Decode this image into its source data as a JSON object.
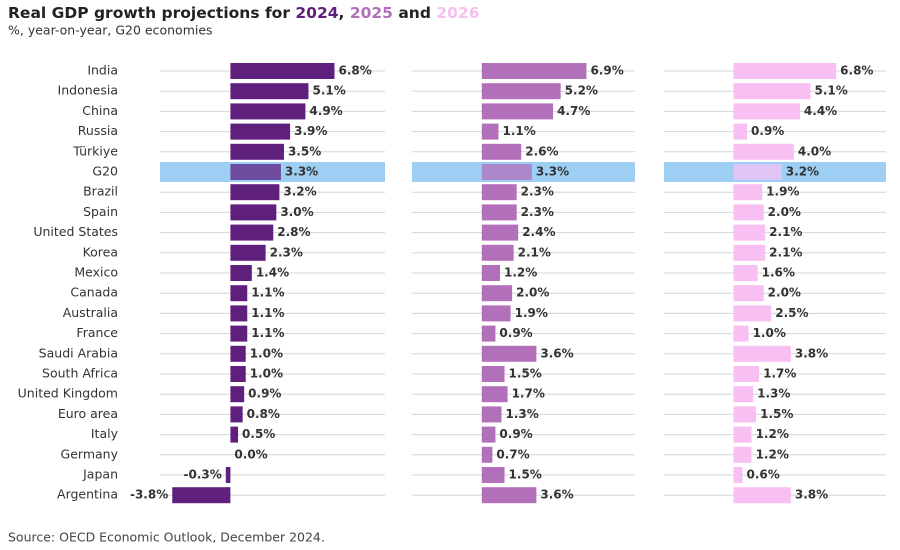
{
  "chart_data": {
    "type": "bar",
    "orientation": "horizontal",
    "title_parts": [
      "Real GDP growth projections for ",
      "2024",
      ", ",
      "2025",
      " and ",
      "2026"
    ],
    "subtitle": "%, year-on-year, G20 economies",
    "source": "Source: OECD Economic Outlook, December 2024.",
    "highlight": "G20",
    "highlight_color": "#9dcff5",
    "categories": [
      "India",
      "Indonesia",
      "China",
      "Russia",
      "Türkiye",
      "G20",
      "Brazil",
      "Spain",
      "United States",
      "Korea",
      "Mexico",
      "Canada",
      "Australia",
      "France",
      "Saudi Arabia",
      "South Africa",
      "United Kingdom",
      "Euro area",
      "Italy",
      "Germany",
      "Japan",
      "Argentina"
    ],
    "series": [
      {
        "name": "2024",
        "color": "#5f1f7d",
        "xlim": [
          -4.6,
          10.1
        ],
        "values": [
          6.8,
          5.1,
          4.9,
          3.9,
          3.5,
          3.3,
          3.2,
          3.0,
          2.8,
          2.3,
          1.4,
          1.1,
          1.1,
          1.1,
          1.0,
          1.0,
          0.9,
          0.8,
          0.5,
          0.0,
          -0.3,
          -3.8
        ],
        "value_labels": [
          "6.8%",
          "5.1%",
          "4.9%",
          "3.9%",
          "3.5%",
          "3.3%",
          "3.2%",
          "3.0%",
          "2.8%",
          "2.3%",
          "1.4%",
          "1.1%",
          "1.1%",
          "1.1%",
          "1.0%",
          "1.0%",
          "0.9%",
          "0.8%",
          "0.5%",
          "0.0%",
          "-0.3%",
          "-3.8%"
        ]
      },
      {
        "name": "2025",
        "color": "#b26fba",
        "xlim": [
          -4.6,
          10.1
        ],
        "values": [
          6.9,
          5.2,
          4.7,
          1.1,
          2.6,
          3.3,
          2.3,
          2.3,
          2.4,
          2.1,
          1.2,
          2.0,
          1.9,
          0.9,
          3.6,
          1.5,
          1.7,
          1.3,
          0.9,
          0.7,
          1.5,
          3.6
        ],
        "value_labels": [
          "6.9%",
          "5.2%",
          "4.7%",
          "1.1%",
          "2.6%",
          "3.3%",
          "2.3%",
          "2.3%",
          "2.4%",
          "2.1%",
          "1.2%",
          "2.0%",
          "1.9%",
          "0.9%",
          "3.6%",
          "1.5%",
          "1.7%",
          "1.3%",
          "0.9%",
          "0.7%",
          "1.5%",
          "3.6%"
        ]
      },
      {
        "name": "2026",
        "color": "#f8c0f2",
        "xlim": [
          -4.6,
          10.1
        ],
        "values": [
          6.8,
          5.1,
          4.4,
          0.9,
          4.0,
          3.2,
          1.9,
          2.0,
          2.1,
          2.1,
          1.6,
          2.0,
          2.5,
          1.0,
          3.8,
          1.7,
          1.3,
          1.5,
          1.2,
          1.2,
          0.6,
          3.8
        ],
        "value_labels": [
          "6.8%",
          "5.1%",
          "4.4%",
          "0.9%",
          "4.0%",
          "3.2%",
          "1.9%",
          "2.0%",
          "2.1%",
          "2.1%",
          "1.6%",
          "2.0%",
          "2.5%",
          "1.0%",
          "3.8%",
          "1.7%",
          "1.3%",
          "1.5%",
          "1.2%",
          "1.2%",
          "0.6%",
          "3.8%"
        ]
      }
    ]
  }
}
